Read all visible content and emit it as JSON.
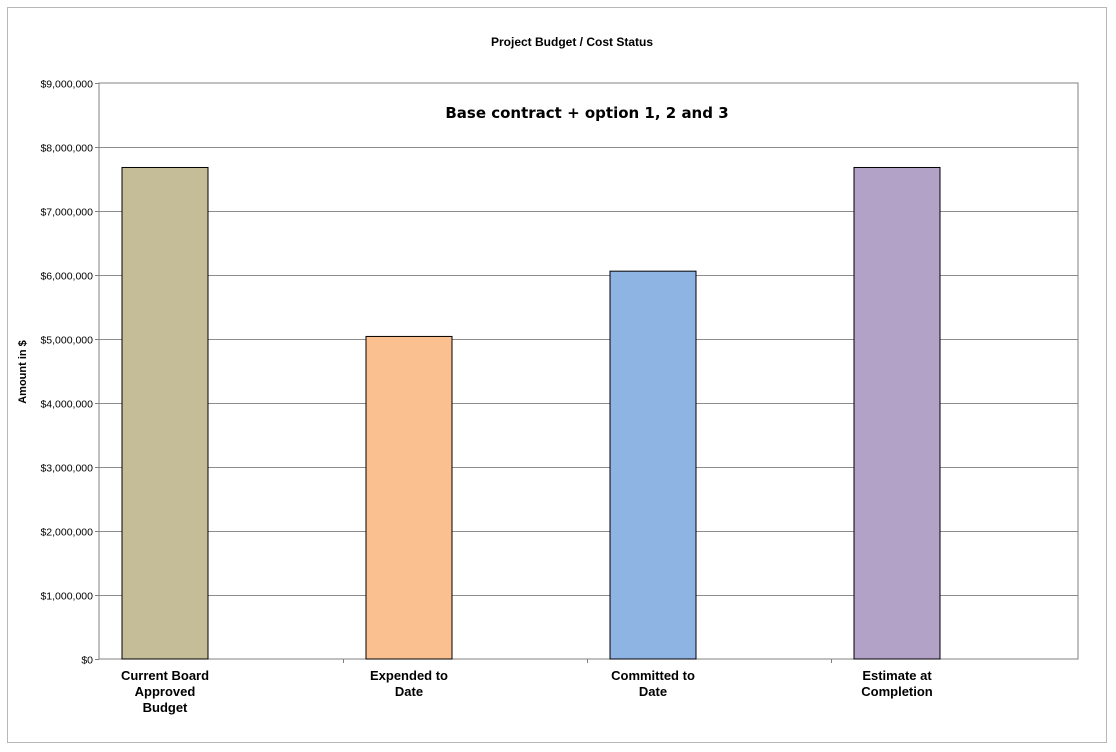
{
  "chart_data": {
    "type": "bar",
    "title": "Project Budget / Cost Status",
    "annotation": "Base contract + option 1, 2 and 3",
    "xlabel": "",
    "ylabel": "Amount in $",
    "ylim": [
      0,
      9000000
    ],
    "yticks": [
      0,
      1000000,
      2000000,
      3000000,
      4000000,
      5000000,
      6000000,
      7000000,
      8000000,
      9000000
    ],
    "ytick_labels": [
      "$0",
      "$1,000,000",
      "$2,000,000",
      "$3,000,000",
      "$4,000,000",
      "$5,000,000",
      "$6,000,000",
      "$7,000,000",
      "$8,000,000",
      "$9,000,000"
    ],
    "grid": true,
    "legend": "none",
    "categories": [
      [
        "Current Board",
        "Approved",
        "Budget"
      ],
      [
        "Expended to",
        "Date"
      ],
      [
        "Committed to",
        "Date"
      ],
      [
        "Estimate at",
        "Completion"
      ]
    ],
    "values": [
      7680000,
      5040000,
      6060000,
      7680000
    ],
    "colors": [
      "#c4bd97",
      "#fac090",
      "#8eb4e3",
      "#b3a2c7"
    ]
  }
}
